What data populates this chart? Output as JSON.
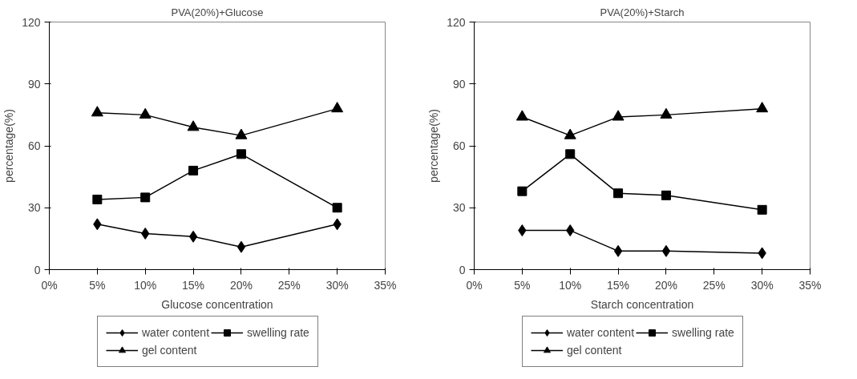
{
  "chart_data": [
    {
      "type": "line",
      "title": "PVA(20%)+Glucose",
      "xlabel": "Glucose concentration",
      "ylabel": "percentage(%)",
      "x": [
        5,
        10,
        15,
        20,
        30
      ],
      "xlim": [
        0,
        35
      ],
      "xticks": [
        {
          "value": 0,
          "label": "0%"
        },
        {
          "value": 5,
          "label": "5%"
        },
        {
          "value": 10,
          "label": "10%"
        },
        {
          "value": 15,
          "label": "15%"
        },
        {
          "value": 20,
          "label": "20%"
        },
        {
          "value": 25,
          "label": "25%"
        },
        {
          "value": 30,
          "label": "30%"
        },
        {
          "value": 35,
          "label": "35%"
        }
      ],
      "ylim": [
        0,
        120
      ],
      "yticks": [
        0,
        30,
        60,
        90,
        120
      ],
      "grid": false,
      "legend": "bottom",
      "series": [
        {
          "name": "water content",
          "color": "#000000",
          "marker": "diamond",
          "values": [
            22,
            17.5,
            16,
            11,
            22
          ]
        },
        {
          "name": "swelling rate",
          "color": "#000000",
          "marker": "square",
          "values": [
            34,
            35,
            48,
            56,
            30
          ]
        },
        {
          "name": "gel content",
          "color": "#000000",
          "marker": "triangle",
          "values": [
            76,
            75,
            69,
            65,
            78
          ]
        }
      ]
    },
    {
      "type": "line",
      "title": "PVA(20%)+Starch",
      "xlabel": "Starch concentration",
      "ylabel": "percentage(%)",
      "x": [
        5,
        10,
        15,
        20,
        30
      ],
      "xlim": [
        0,
        35
      ],
      "xticks": [
        {
          "value": 0,
          "label": "0%"
        },
        {
          "value": 5,
          "label": "5%"
        },
        {
          "value": 10,
          "label": "10%"
        },
        {
          "value": 15,
          "label": "15%"
        },
        {
          "value": 20,
          "label": "20%"
        },
        {
          "value": 25,
          "label": "25%"
        },
        {
          "value": 30,
          "label": "30%"
        },
        {
          "value": 35,
          "label": "35%"
        }
      ],
      "ylim": [
        0,
        120
      ],
      "yticks": [
        0,
        30,
        60,
        90,
        120
      ],
      "grid": false,
      "legend": "bottom",
      "series": [
        {
          "name": "water content",
          "color": "#000000",
          "marker": "diamond",
          "values": [
            19,
            19,
            9,
            9,
            8
          ]
        },
        {
          "name": "swelling rate",
          "color": "#000000",
          "marker": "square",
          "values": [
            38,
            56,
            37,
            36,
            29
          ]
        },
        {
          "name": "gel content",
          "color": "#000000",
          "marker": "triangle",
          "values": [
            74,
            65,
            74,
            75,
            78
          ]
        }
      ]
    }
  ]
}
